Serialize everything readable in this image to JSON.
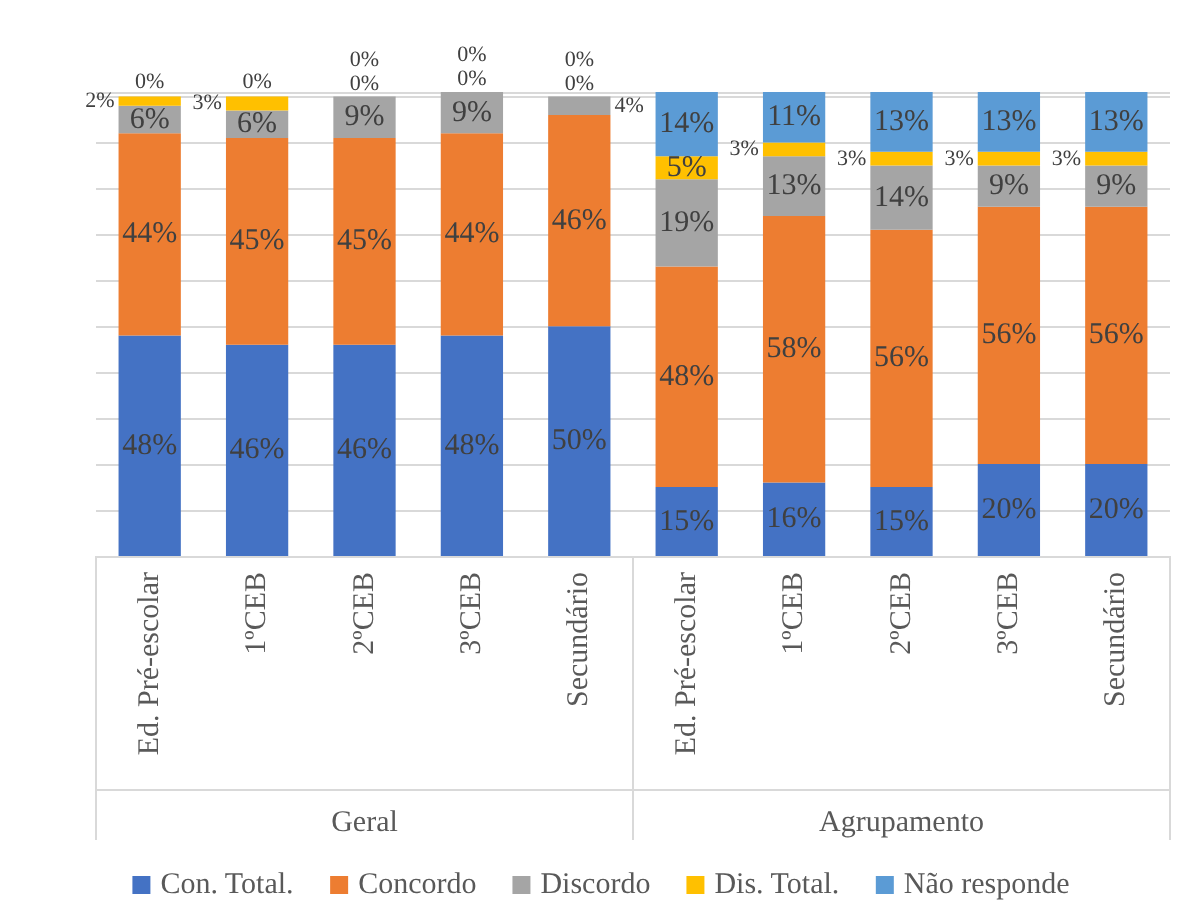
{
  "chart_data": {
    "type": "bar",
    "stacked": true,
    "grid": "y",
    "legend": "bottom",
    "tick_labels": "x",
    "categories": [
      "Ed. Pré-escolar",
      "1ºCEB",
      "2ºCEB",
      "3ºCEB",
      "Secundário",
      "Ed. Pré-escolar",
      "1ºCEB",
      "2ºCEB",
      "3ºCEB",
      "Secundário"
    ],
    "annotations": [
      "Geral",
      "Agrupamento"
    ],
    "series": [
      {
        "name": "Con. Total.",
        "color": "#4472c4",
        "values": [
          48,
          46,
          46,
          48,
          50,
          15,
          16,
          15,
          20,
          20
        ],
        "value_labels": [
          "48%",
          "46%",
          "46%",
          "48%",
          "50%",
          "15%",
          "16%",
          "15%",
          "20%",
          "20%"
        ]
      },
      {
        "name": "Concordo",
        "color": "#ed7d31",
        "values": [
          44,
          45,
          45,
          44,
          46,
          48,
          58,
          56,
          56,
          56
        ],
        "value_labels": [
          "44%",
          "45%",
          "45%",
          "44%",
          "46%",
          "48%",
          "58%",
          "56%",
          "56%",
          "56%"
        ]
      },
      {
        "name": "Discordo",
        "color": "#a5a5a5",
        "values": [
          6,
          6,
          9,
          9,
          4,
          19,
          13,
          14,
          9,
          9
        ],
        "value_labels": [
          "6%",
          "6%",
          "9%",
          "9%",
          "4%",
          "19%",
          "13%",
          "14%",
          "9%",
          "9%"
        ]
      },
      {
        "name": "Dis. Total.",
        "color": "#ffc000",
        "values": [
          2,
          3,
          0,
          0,
          0,
          5,
          3,
          3,
          3,
          3
        ],
        "value_labels": [
          "2%",
          "3%",
          "0%",
          "0%",
          "0%",
          "5%",
          "3%",
          "3%",
          "3%",
          "3%"
        ]
      },
      {
        "name": "Não responde",
        "color": "#5b9bd5",
        "values": [
          0,
          0,
          0,
          0,
          0,
          14,
          11,
          13,
          13,
          13
        ],
        "value_labels": [
          "0%",
          "0%",
          "0%",
          "0%",
          "0%",
          "14%",
          "11%",
          "13%",
          "13%",
          "13%"
        ]
      }
    ]
  }
}
